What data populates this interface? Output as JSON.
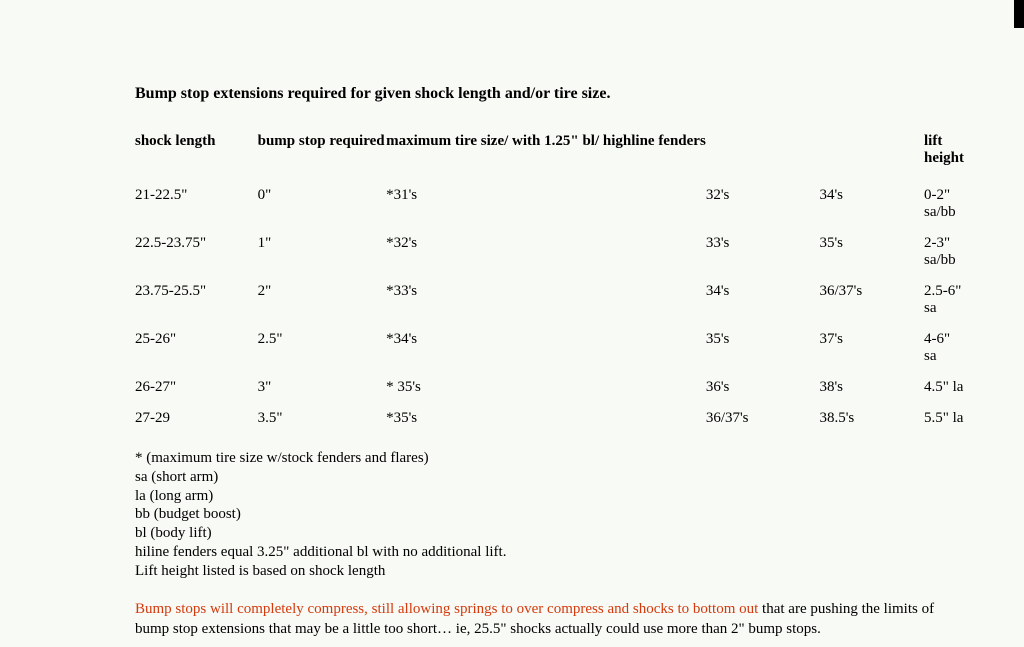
{
  "title": "Bump stop extensions required for given shock length and/or tire size.",
  "headers": {
    "shock_length": "shock length",
    "bump_stop": "bump stop required",
    "tire_combined": "maximum tire size/ with 1.25\" bl/ highline fenders",
    "lift_height": "lift height"
  },
  "rows": [
    {
      "shock": "21-22.5\"",
      "bump": "0\"",
      "t1": "*31's",
      "t2": "32's",
      "t3": "34's",
      "lift": "0-2\" sa/bb"
    },
    {
      "shock": "22.5-23.75\"",
      "bump": "1\"",
      "t1": "*32's",
      "t2": "33's",
      "t3": "35's",
      "lift": "2-3\" sa/bb"
    },
    {
      "shock": "23.75-25.5\"",
      "bump": "2\"",
      "t1": "*33's",
      "t2": "34's",
      "t3": "36/37's",
      "lift": "2.5-6\" sa"
    },
    {
      "shock": "25-26\"",
      "bump": "2.5\"",
      "t1": "*34's",
      "t2": "35's",
      "t3": "37's",
      "lift": "4-6\" sa"
    },
    {
      "shock": "26-27\"",
      "bump": "3\"",
      "t1": "* 35's",
      "t2": "36's",
      "t3": "38's",
      "lift": "4.5\" la"
    },
    {
      "shock": "27-29",
      "bump": "3.5\"",
      "t1": "*35's",
      "t2": "36/37's",
      "t3": "38.5's",
      "lift": "5.5\" la"
    }
  ],
  "notes": [
    "* (maximum tire size w/stock fenders and flares)",
    "sa (short arm)",
    "la (long arm)",
    "bb (budget boost)",
    "bl (body lift)",
    "hiline fenders equal 3.25\" additional bl with no additional lift.",
    "Lift height listed  is based on shock length"
  ],
  "warning_highlight": "Bump stops will completely compress, still allowing springs to over compress and shocks to bottom out",
  "warning_rest": " that are pushing the limits of bump stop extensions that may be a little too short… ie, 25.5\" shocks actually could use more than 2\"  bump stops."
}
